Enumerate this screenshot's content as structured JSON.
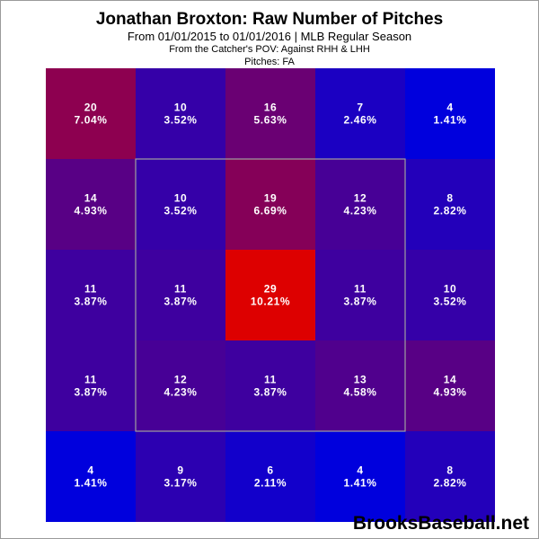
{
  "chart_data": {
    "type": "heatmap",
    "title": "Jonathan Broxton: Raw Number of Pitches",
    "subtitle": "From 01/01/2015 to 01/01/2016 | MLB Regular Season",
    "notes": [
      "From the Catcher's POV:  Against RHH & LHH",
      "Pitches:  FA"
    ],
    "rows": 5,
    "cols": 5,
    "counts": [
      [
        20,
        10,
        16,
        7,
        4
      ],
      [
        14,
        10,
        19,
        12,
        8
      ],
      [
        11,
        11,
        29,
        11,
        10
      ],
      [
        11,
        12,
        11,
        13,
        14
      ],
      [
        4,
        9,
        6,
        4,
        8
      ]
    ],
    "percents": [
      [
        "7.04%",
        "3.52%",
        "5.63%",
        "2.46%",
        "1.41%"
      ],
      [
        "4.93%",
        "3.52%",
        "6.69%",
        "4.23%",
        "2.82%"
      ],
      [
        "3.87%",
        "3.87%",
        "10.21%",
        "3.87%",
        "3.52%"
      ],
      [
        "3.87%",
        "4.23%",
        "3.87%",
        "4.58%",
        "4.93%"
      ],
      [
        "1.41%",
        "3.17%",
        "2.11%",
        "1.41%",
        "2.82%"
      ]
    ],
    "strike_zone": "inner 3x3 cells outlined",
    "color_scale": {
      "low": "#0000dd",
      "high": "#dd0000"
    }
  },
  "watermark": "BrooksBaseball.net"
}
